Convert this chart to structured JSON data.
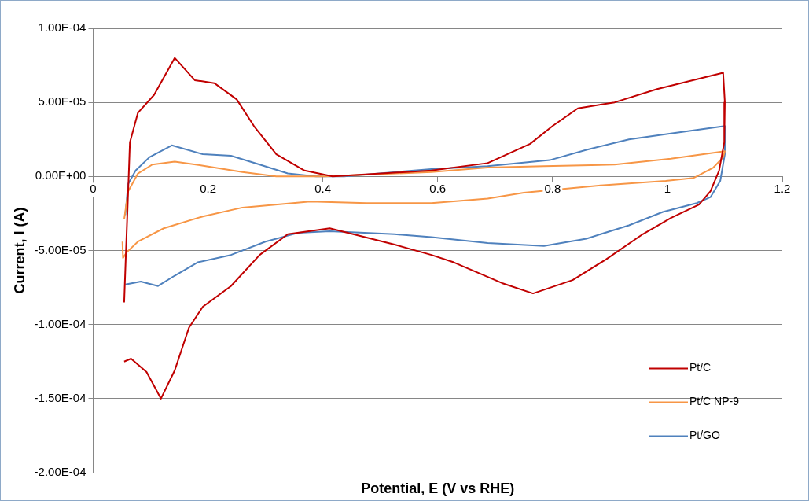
{
  "chart_data": {
    "type": "line",
    "xlabel": "Potential, E (V vs RHE)",
    "ylabel": "Current, I (A)",
    "xlim": [
      0,
      1.2
    ],
    "xticks": [
      0,
      0.2,
      0.4,
      0.6,
      0.8,
      1,
      1.2
    ],
    "ylim": [
      -0.0002,
      0.0001
    ],
    "yticks": [
      {
        "value": -0.0002,
        "label": "-2.00E-04"
      },
      {
        "value": -0.00015,
        "label": "-1.50E-04"
      },
      {
        "value": -0.0001,
        "label": "-1.00E-04"
      },
      {
        "value": -5e-05,
        "label": "-5.00E-05"
      },
      {
        "value": 0,
        "label": "0.00E+00"
      },
      {
        "value": 5e-05,
        "label": "5.00E-05"
      },
      {
        "value": 0.0001,
        "label": "1.00E-04"
      }
    ],
    "grid": "y",
    "legend": "bottom right",
    "series": [
      {
        "name": "Pt/C",
        "color": "#c00000",
        "x": [
          0.054,
          0.064,
          0.078,
          0.106,
          0.142,
          0.177,
          0.211,
          0.25,
          0.28,
          0.319,
          0.368,
          0.417,
          0.589,
          0.687,
          0.761,
          0.8,
          0.844,
          0.908,
          0.982,
          1.097,
          1.1,
          1.099,
          1.09,
          1.075,
          1.055,
          1.006,
          0.957,
          0.893,
          0.835,
          0.766,
          0.712,
          0.628,
          0.589,
          0.525,
          0.412,
          0.339,
          0.29,
          0.24,
          0.191,
          0.167,
          0.142,
          0.118,
          0.093,
          0.066,
          0.054
        ],
        "values": [
          -8.5e-05,
          2.3e-05,
          4.3e-05,
          5.5e-05,
          8e-05,
          6.5e-05,
          6.3e-05,
          5.2e-05,
          3.4e-05,
          1.5e-05,
          4e-06,
          0,
          4e-06,
          9e-06,
          2.2e-05,
          3.4e-05,
          4.6e-05,
          5e-05,
          5.9e-05,
          7e-05,
          5e-05,
          2.3e-05,
          4e-06,
          -1e-05,
          -1.9e-05,
          -2.8e-05,
          -3.9e-05,
          -5.6e-05,
          -7e-05,
          -7.9e-05,
          -7.2e-05,
          -5.8e-05,
          -5.3e-05,
          -4.6e-05,
          -3.5e-05,
          -3.9e-05,
          -5.3e-05,
          -7.4e-05,
          -8.8e-05,
          -0.000102,
          -0.000131,
          -0.00015,
          -0.000132,
          -0.000123,
          -0.000125
        ]
      },
      {
        "name": "Pt/C NP-9",
        "color": "#f79646",
        "x": [
          0.054,
          0.061,
          0.078,
          0.103,
          0.142,
          0.196,
          0.26,
          0.319,
          0.403,
          0.589,
          0.687,
          0.785,
          0.908,
          1.006,
          1.1,
          1.097,
          1.08,
          1.046,
          0.997,
          0.884,
          0.75,
          0.687,
          0.589,
          0.476,
          0.378,
          0.26,
          0.191,
          0.123,
          0.078,
          0.059,
          0.052,
          0.051
        ],
        "values": [
          -2.9e-05,
          -1e-05,
          2e-06,
          8e-06,
          1e-05,
          7e-06,
          3e-06,
          0,
          0,
          3e-06,
          6e-06,
          7e-06,
          8e-06,
          1.2e-05,
          1.7e-05,
          1.3e-05,
          6e-06,
          -1e-06,
          -3e-06,
          -6e-06,
          -1.1e-05,
          -1.5e-05,
          -1.8e-05,
          -1.8e-05,
          -1.7e-05,
          -2.1e-05,
          -2.7e-05,
          -3.5e-05,
          -4.4e-05,
          -5.1e-05,
          -5.5e-05,
          -4.4e-05
        ]
      },
      {
        "name": "Pt/GO",
        "color": "#4f81bd",
        "x": [
          0.056,
          0.061,
          0.074,
          0.098,
          0.137,
          0.191,
          0.24,
          0.29,
          0.339,
          0.388,
          0.437,
          0.589,
          0.687,
          0.795,
          0.859,
          0.933,
          1.006,
          1.1,
          1.1,
          1.092,
          1.075,
          1.051,
          0.992,
          0.933,
          0.859,
          0.785,
          0.687,
          0.589,
          0.525,
          0.412,
          0.358,
          0.3,
          0.24,
          0.182,
          0.142,
          0.113,
          0.083,
          0.056
        ],
        "values": [
          -2.6e-05,
          -5e-06,
          4e-06,
          1.3e-05,
          2.1e-05,
          1.5e-05,
          1.4e-05,
          8e-06,
          2e-06,
          0,
          0,
          5e-06,
          7e-06,
          1.1e-05,
          1.8e-05,
          2.5e-05,
          2.9e-05,
          3.4e-05,
          1.5e-05,
          -3e-06,
          -1.4e-05,
          -1.8e-05,
          -2.4e-05,
          -3.3e-05,
          -4.2e-05,
          -4.7e-05,
          -4.5e-05,
          -4.1e-05,
          -3.9e-05,
          -3.7e-05,
          -3.8e-05,
          -4.4e-05,
          -5.3e-05,
          -5.8e-05,
          -6.7e-05,
          -7.4e-05,
          -7.1e-05,
          -7.3e-05
        ]
      }
    ]
  }
}
